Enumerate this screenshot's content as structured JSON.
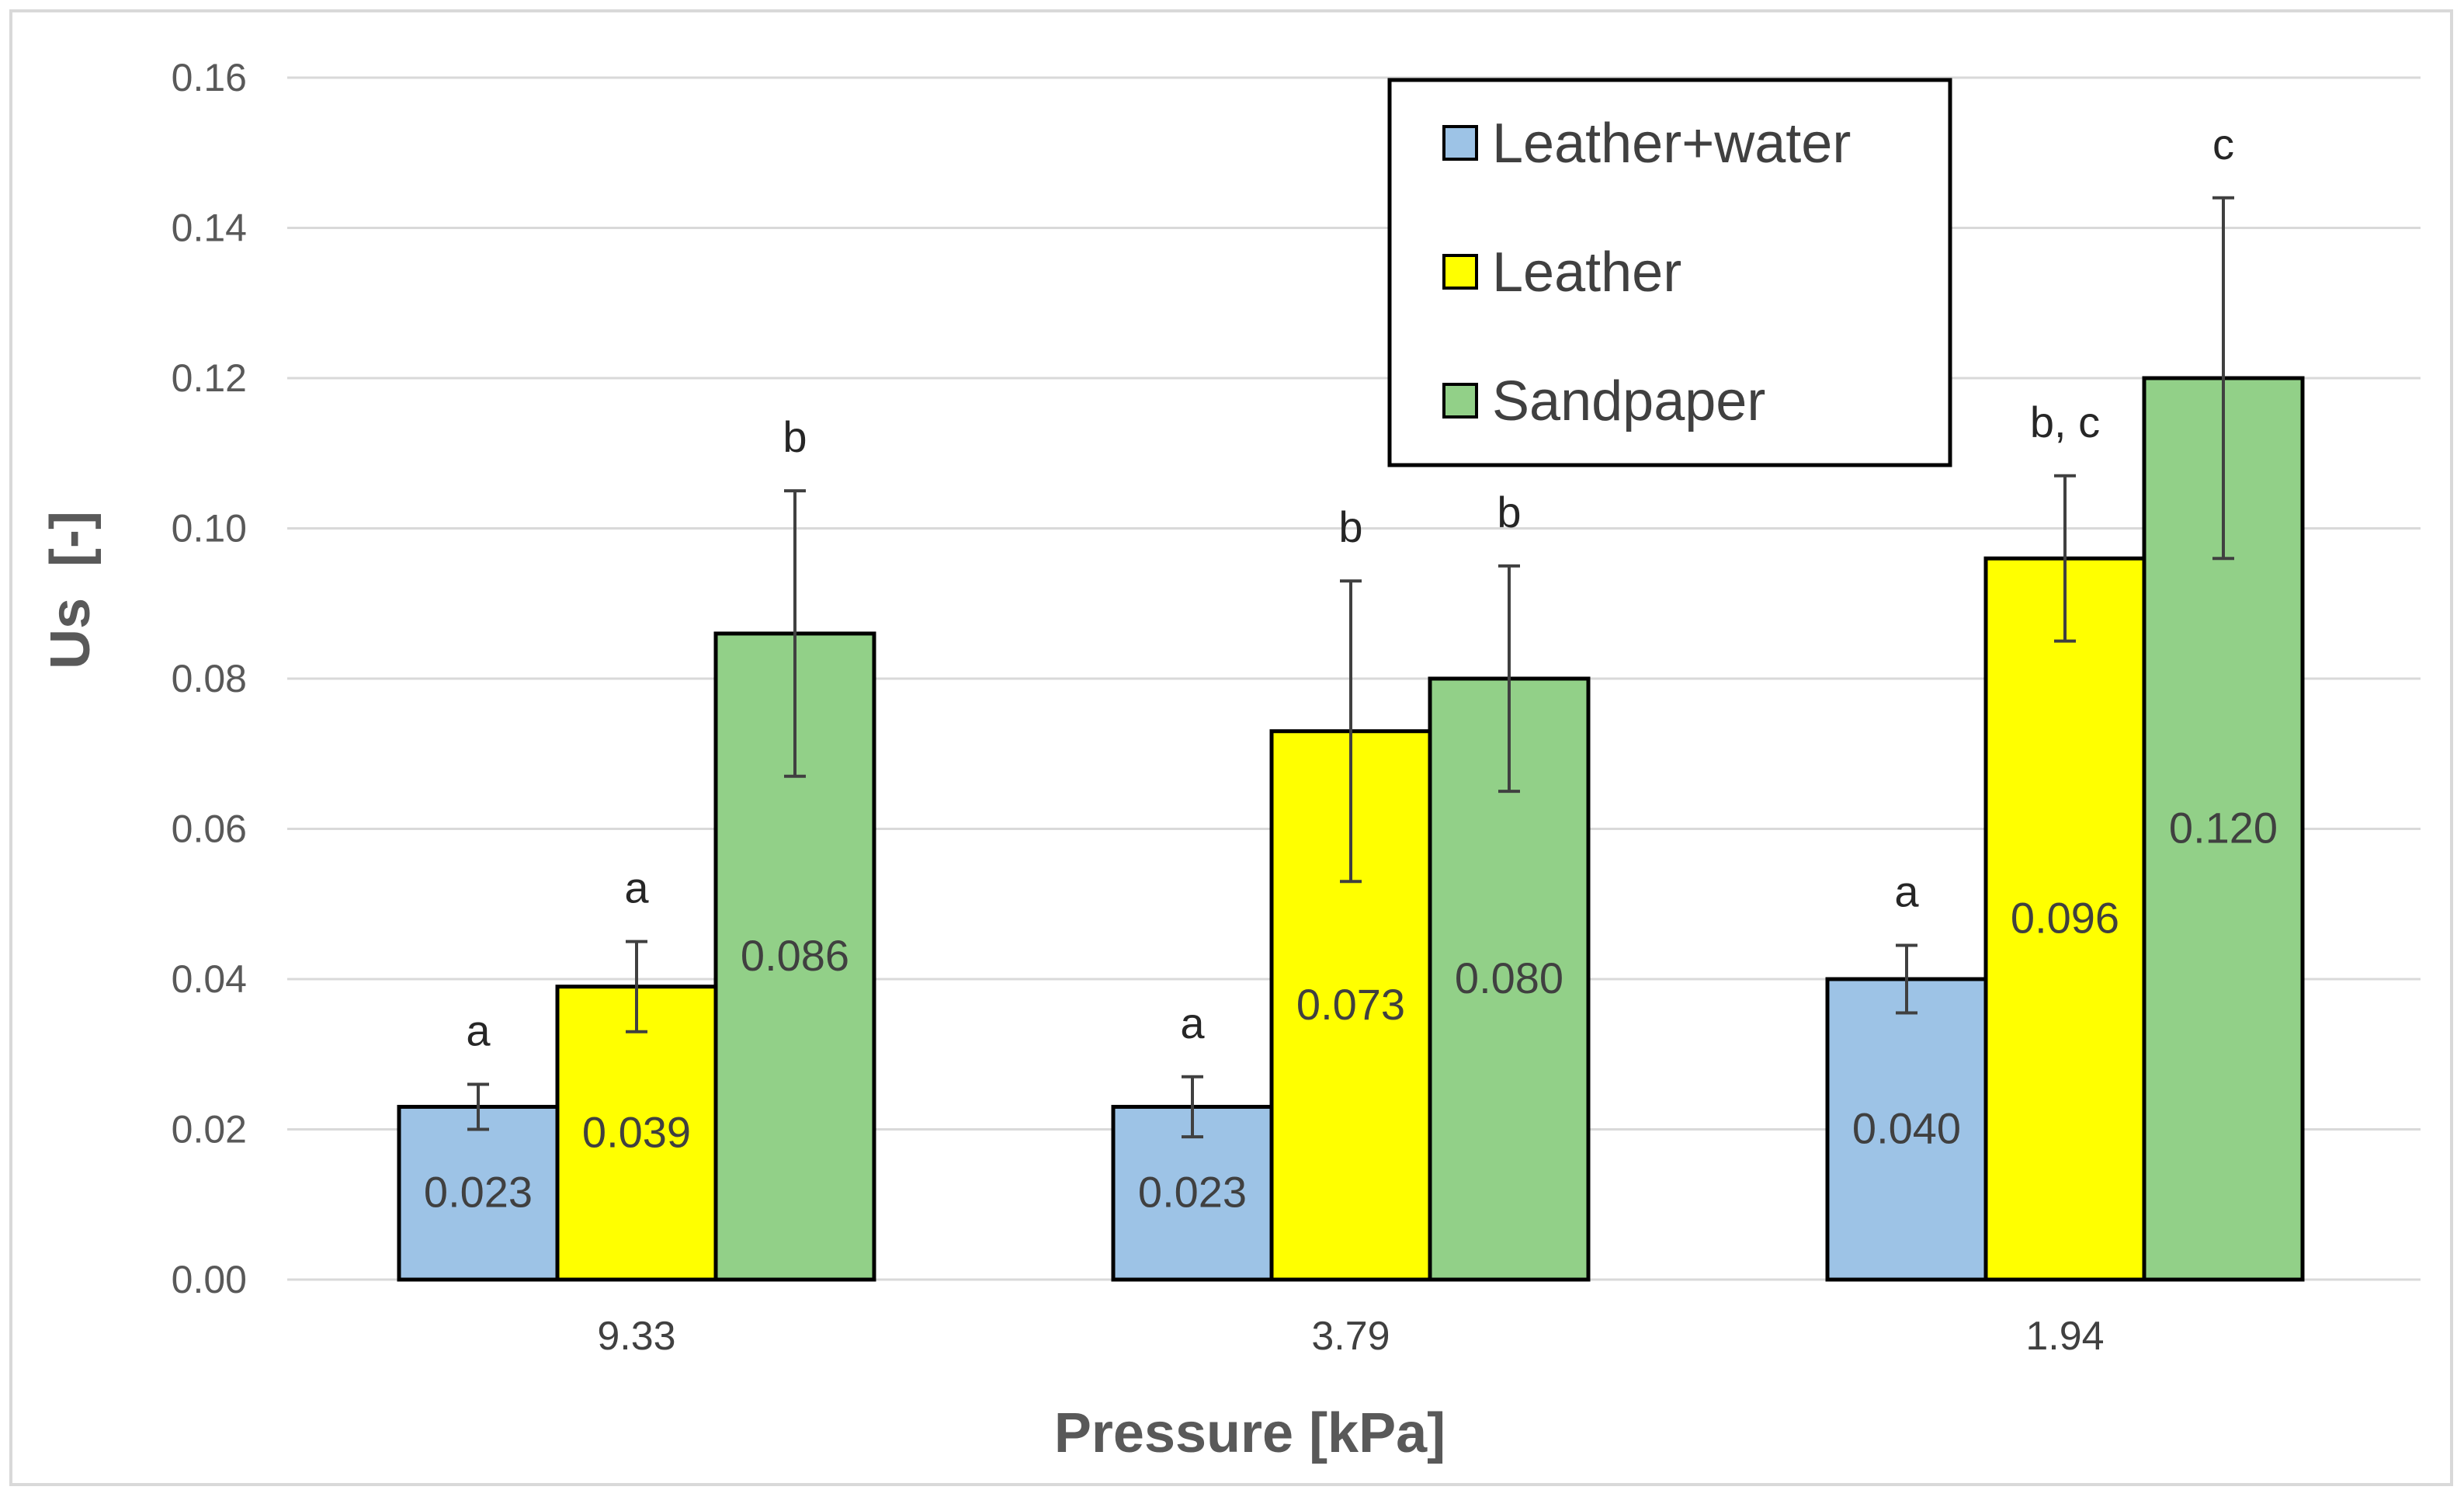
{
  "chart_data": {
    "type": "bar",
    "xlabel": "Pressure [kPa]",
    "ylabel": "Us  [-]",
    "ylim": [
      0,
      0.16
    ],
    "yticks": [
      "0.00",
      "0.02",
      "0.04",
      "0.06",
      "0.08",
      "0.10",
      "0.12",
      "0.14",
      "0.16"
    ],
    "categories": [
      "9.33",
      "3.79",
      "1.94"
    ],
    "legend_position": "top-right",
    "grid": true,
    "series": [
      {
        "name": "Leather+water",
        "color": "#9dc3e6",
        "values": [
          0.023,
          0.023,
          0.04
        ],
        "labels": [
          "0.023",
          "0.023",
          "0.040"
        ],
        "errors": [
          0.003,
          0.004,
          0.0045
        ],
        "significance": [
          "a",
          "a",
          "a"
        ]
      },
      {
        "name": "Leather",
        "color": "#ffff00",
        "values": [
          0.039,
          0.073,
          0.096
        ],
        "labels": [
          "0.039",
          "0.073",
          "0.096"
        ],
        "errors": [
          0.006,
          0.02,
          0.011
        ],
        "significance": [
          "a",
          "b",
          "b, c"
        ]
      },
      {
        "name": "Sandpaper",
        "color": "#92d088",
        "values": [
          0.086,
          0.08,
          0.12
        ],
        "labels": [
          "0.086",
          "0.080",
          "0.120"
        ],
        "errors": [
          0.019,
          0.015,
          0.024
        ],
        "significance": [
          "b",
          "b",
          "c"
        ]
      }
    ]
  }
}
